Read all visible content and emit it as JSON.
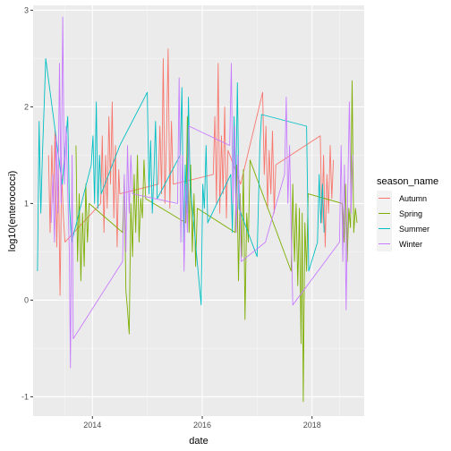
{
  "chart_data": {
    "type": "line",
    "xlabel": "date",
    "ylabel": "log10(enterococci)",
    "x_ticks": [
      "2014",
      "2016",
      "2018"
    ],
    "y_ticks": [
      "-1",
      "0",
      "1",
      "2",
      "3"
    ],
    "xlim": [
      2012.92,
      2018.95
    ],
    "ylim": [
      -1.2,
      3.05
    ],
    "legend": {
      "title": "season_name",
      "position": "right"
    },
    "series": [
      {
        "name": "Autumn",
        "color": "#F8766D",
        "points": [
          [
            2013.2,
            1.5
          ],
          [
            2013.23,
            0.7
          ],
          [
            2013.26,
            1.6
          ],
          [
            2013.29,
            1.0
          ],
          [
            2013.32,
            1.75
          ],
          [
            2013.35,
            0.55
          ],
          [
            2013.38,
            1.4
          ],
          [
            2013.41,
            0.05
          ],
          [
            2013.44,
            1.3
          ],
          [
            2013.47,
            0.9
          ],
          [
            2013.5,
            0.6
          ],
          [
            2014.15,
            1.0
          ],
          [
            2014.18,
            1.7
          ],
          [
            2014.21,
            0.7
          ],
          [
            2014.24,
            1.5
          ],
          [
            2014.27,
            0.95
          ],
          [
            2014.3,
            1.9
          ],
          [
            2014.33,
            1.2
          ],
          [
            2014.36,
            2.05
          ],
          [
            2014.39,
            0.85
          ],
          [
            2014.42,
            1.6
          ],
          [
            2014.45,
            0.55
          ],
          [
            2014.48,
            1.35
          ],
          [
            2014.5,
            1.1
          ],
          [
            2015.2,
            1.2
          ],
          [
            2015.23,
            1.8
          ],
          [
            2015.26,
            1.1
          ],
          [
            2015.29,
            2.5
          ],
          [
            2015.32,
            1.0
          ],
          [
            2015.35,
            1.7
          ],
          [
            2015.38,
            2.6
          ],
          [
            2015.41,
            0.95
          ],
          [
            2015.44,
            1.85
          ],
          [
            2015.47,
            1.2
          ],
          [
            2016.2,
            1.3
          ],
          [
            2016.23,
            1.9
          ],
          [
            2016.26,
            1.0
          ],
          [
            2016.29,
            2.45
          ],
          [
            2016.32,
            0.9
          ],
          [
            2016.35,
            1.7
          ],
          [
            2016.38,
            1.1
          ],
          [
            2016.41,
            2.0
          ],
          [
            2016.44,
            0.85
          ],
          [
            2016.47,
            1.55
          ],
          [
            2016.7,
            1.2
          ],
          [
            2017.1,
            2.15
          ],
          [
            2017.13,
            1.3
          ],
          [
            2017.16,
            1.8
          ],
          [
            2017.19,
            0.95
          ],
          [
            2017.22,
            1.55
          ],
          [
            2017.25,
            1.1
          ],
          [
            2017.28,
            1.75
          ],
          [
            2017.31,
            0.9
          ],
          [
            2017.34,
            1.4
          ],
          [
            2018.15,
            1.7
          ],
          [
            2018.18,
            0.8
          ],
          [
            2018.21,
            1.5
          ],
          [
            2018.24,
            0.55
          ],
          [
            2018.27,
            1.3
          ],
          [
            2018.3,
            0.9
          ],
          [
            2018.33,
            1.6
          ],
          [
            2018.36,
            1.05
          ],
          [
            2018.39,
            1.45
          ]
        ]
      },
      {
        "name": "Spring",
        "color": "#7CAE00",
        "points": [
          [
            2013.7,
            1.6
          ],
          [
            2013.73,
            0.4
          ],
          [
            2013.76,
            1.1
          ],
          [
            2013.79,
            0.2
          ],
          [
            2013.82,
            0.9
          ],
          [
            2013.85,
            0.35
          ],
          [
            2013.88,
            1.2
          ],
          [
            2013.91,
            0.6
          ],
          [
            2013.94,
            1.0
          ],
          [
            2014.55,
            0.7
          ],
          [
            2014.58,
            1.25
          ],
          [
            2014.61,
            0.1
          ],
          [
            2014.64,
            -0.1
          ],
          [
            2014.67,
            -0.35
          ],
          [
            2014.7,
            1.0
          ],
          [
            2014.73,
            0.45
          ],
          [
            2014.76,
            1.3
          ],
          [
            2014.79,
            0.7
          ],
          [
            2014.82,
            1.5
          ],
          [
            2014.85,
            0.6
          ],
          [
            2014.88,
            1.05
          ],
          [
            2014.91,
            0.85
          ],
          [
            2014.94,
            1.45
          ],
          [
            2014.97,
            1.05
          ],
          [
            2015.7,
            0.8
          ],
          [
            2015.73,
            1.9
          ],
          [
            2015.76,
            0.7
          ],
          [
            2015.79,
            1.4
          ],
          [
            2015.82,
            0.5
          ],
          [
            2015.85,
            1.1
          ],
          [
            2015.88,
            0.35
          ],
          [
            2015.91,
            0.95
          ],
          [
            2016.6,
            0.7
          ],
          [
            2016.63,
            1.4
          ],
          [
            2016.66,
            0.2
          ],
          [
            2016.69,
            1.1
          ],
          [
            2016.72,
            0.45
          ],
          [
            2016.75,
            1.35
          ],
          [
            2016.78,
            -0.2
          ],
          [
            2016.81,
            0.9
          ],
          [
            2016.84,
            0.6
          ],
          [
            2016.87,
            1.45
          ],
          [
            2017.62,
            0.3
          ],
          [
            2017.65,
            1.2
          ],
          [
            2017.68,
            0.4
          ],
          [
            2017.71,
            1.0
          ],
          [
            2017.74,
            0.15
          ],
          [
            2017.77,
            0.95
          ],
          [
            2017.8,
            -0.45
          ],
          [
            2017.82,
            0.9
          ],
          [
            2017.84,
            -1.05
          ],
          [
            2017.87,
            0.8
          ],
          [
            2017.9,
            0.3
          ],
          [
            2017.93,
            1.1
          ],
          [
            2018.55,
            1.0
          ],
          [
            2018.58,
            0.6
          ],
          [
            2018.61,
            1.2
          ],
          [
            2018.64,
            0.4
          ],
          [
            2018.67,
            0.95
          ],
          [
            2018.7,
            0.75
          ],
          [
            2018.73,
            2.27
          ],
          [
            2018.76,
            0.7
          ],
          [
            2018.79,
            0.95
          ],
          [
            2018.82,
            0.8
          ]
        ]
      },
      {
        "name": "Summer",
        "color": "#00BFC4",
        "points": [
          [
            2013.0,
            0.3
          ],
          [
            2013.03,
            1.85
          ],
          [
            2013.06,
            0.9
          ],
          [
            2013.09,
            1.5
          ],
          [
            2013.12,
            2.0
          ],
          [
            2013.15,
            2.5
          ],
          [
            2013.45,
            1.2
          ],
          [
            2013.55,
            1.9
          ],
          [
            2013.58,
            1.0
          ],
          [
            2013.62,
            0.6
          ],
          [
            2013.98,
            1.4
          ],
          [
            2014.01,
            1.7
          ],
          [
            2014.04,
            1.0
          ],
          [
            2014.07,
            2.05
          ],
          [
            2014.1,
            0.95
          ],
          [
            2014.13,
            1.5
          ],
          [
            2014.16,
            1.1
          ],
          [
            2014.5,
            1.6
          ],
          [
            2015.0,
            2.15
          ],
          [
            2015.03,
            1.1
          ],
          [
            2015.06,
            1.65
          ],
          [
            2015.09,
            0.9
          ],
          [
            2015.12,
            1.3
          ],
          [
            2015.15,
            1.85
          ],
          [
            2015.18,
            1.05
          ],
          [
            2015.6,
            1.5
          ],
          [
            2015.63,
            2.2
          ],
          [
            2015.66,
            0.6
          ],
          [
            2015.69,
            1.4
          ],
          [
            2015.72,
            0.9
          ],
          [
            2015.75,
            2.1
          ],
          [
            2015.78,
            1.2
          ],
          [
            2015.98,
            -0.05
          ],
          [
            2016.01,
            1.2
          ],
          [
            2016.04,
            0.95
          ],
          [
            2016.07,
            1.6
          ],
          [
            2016.1,
            0.8
          ],
          [
            2016.52,
            1.3
          ],
          [
            2016.55,
            0.7
          ],
          [
            2016.58,
            1.9
          ],
          [
            2016.61,
            1.1
          ],
          [
            2016.64,
            2.25
          ],
          [
            2016.67,
            0.95
          ],
          [
            2017.0,
            0.45
          ],
          [
            2017.05,
            1.6
          ],
          [
            2017.08,
            1.92
          ],
          [
            2017.9,
            1.8
          ],
          [
            2017.94,
            0.3
          ],
          [
            2018.1,
            0.6
          ],
          [
            2018.13,
            1.3
          ],
          [
            2018.16,
            0.8
          ],
          [
            2018.19,
            1.2
          ],
          [
            2018.22,
            0.7
          ]
        ]
      },
      {
        "name": "Winter",
        "color": "#C77CFF",
        "points": [
          [
            2013.25,
            0.8
          ],
          [
            2013.28,
            1.3
          ],
          [
            2013.31,
            0.6
          ],
          [
            2013.34,
            1.7
          ],
          [
            2013.37,
            0.9
          ],
          [
            2013.4,
            2.45
          ],
          [
            2013.43,
            1.0
          ],
          [
            2013.46,
            2.93
          ],
          [
            2013.49,
            1.2
          ],
          [
            2013.52,
            1.8
          ],
          [
            2013.58,
            0.5
          ],
          [
            2013.6,
            -0.7
          ],
          [
            2013.63,
            1.5
          ],
          [
            2013.65,
            -0.4
          ],
          [
            2014.55,
            0.4
          ],
          [
            2014.58,
            1.3
          ],
          [
            2014.61,
            0.5
          ],
          [
            2014.64,
            1.6
          ],
          [
            2014.67,
            0.9
          ],
          [
            2014.7,
            1.5
          ],
          [
            2014.73,
            1.1
          ],
          [
            2015.55,
            1.0
          ],
          [
            2015.58,
            2.3
          ],
          [
            2015.61,
            0.6
          ],
          [
            2015.64,
            1.5
          ],
          [
            2015.67,
            0.3
          ],
          [
            2015.7,
            1.2
          ],
          [
            2015.73,
            0.7
          ],
          [
            2015.76,
            1.8
          ],
          [
            2016.5,
            1.6
          ],
          [
            2016.53,
            2.45
          ],
          [
            2016.56,
            1.0
          ],
          [
            2016.59,
            1.8
          ],
          [
            2016.62,
            0.7
          ],
          [
            2016.65,
            1.5
          ],
          [
            2016.68,
            1.1
          ],
          [
            2016.71,
            0.4
          ],
          [
            2017.15,
            0.6
          ],
          [
            2017.5,
            1.3
          ],
          [
            2017.53,
            2.1
          ],
          [
            2017.56,
            1.0
          ],
          [
            2017.59,
            1.6
          ],
          [
            2017.62,
            0.7
          ],
          [
            2017.65,
            -0.05
          ],
          [
            2018.5,
            0.6
          ],
          [
            2018.53,
            1.6
          ],
          [
            2018.56,
            0.4
          ],
          [
            2018.59,
            1.4
          ],
          [
            2018.62,
            -0.1
          ],
          [
            2018.65,
            1.1
          ],
          [
            2018.68,
            2.05
          ],
          [
            2018.71,
            0.9
          ],
          [
            2018.74,
            1.5
          ]
        ]
      }
    ]
  }
}
